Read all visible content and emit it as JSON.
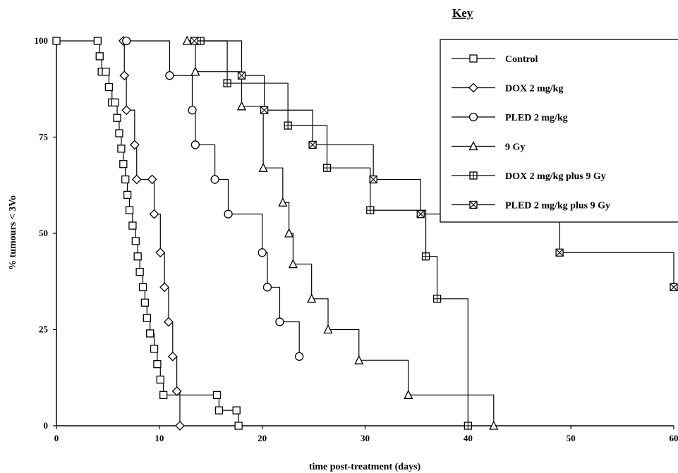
{
  "chart_data": {
    "type": "line",
    "step": true,
    "title": "",
    "key_title": "Key",
    "xlabel": "time post-treatment (days)",
    "ylabel": "% tumours < 3Vo",
    "xlim": [
      0,
      60
    ],
    "ylim": [
      0,
      100
    ],
    "x_ticks": [
      "0",
      "10",
      "20",
      "30",
      "40",
      "50",
      "60"
    ],
    "y_ticks": [
      "0",
      "25",
      "50",
      "75",
      "100"
    ],
    "grid": false,
    "legend_position": "top-right",
    "series": [
      {
        "name": "Control",
        "marker": "square",
        "x": [
          0,
          4,
          4.2,
          4.4,
          4.8,
          5.1,
          5.4,
          5.7,
          5.9,
          6.1,
          6.3,
          6.5,
          6.7,
          6.9,
          7.1,
          7.4,
          7.7,
          7.9,
          8.1,
          8.4,
          8.6,
          8.8,
          9.1,
          9.5,
          9.8,
          10.1,
          10.4,
          15.6,
          15.8,
          17.5,
          17.7
        ],
        "y": [
          100,
          100,
          96,
          92,
          92,
          88,
          84,
          84,
          80,
          76,
          72,
          68,
          64,
          60,
          56,
          52,
          48,
          44,
          40,
          36,
          32,
          28,
          24,
          20,
          16,
          12,
          8,
          8,
          4,
          4,
          0
        ]
      },
      {
        "name": "DOX 2 mg/kg",
        "marker": "diamond",
        "x": [
          6.5,
          6.6,
          6.8,
          7.6,
          7.8,
          9.3,
          9.5,
          10.1,
          10.5,
          10.9,
          11.3,
          11.7,
          12.0
        ],
        "y": [
          100,
          91,
          82,
          73,
          64,
          64,
          55,
          45,
          36,
          27,
          18,
          9,
          0
        ]
      },
      {
        "name": "PLED 2 mg/kg",
        "marker": "circle",
        "x": [
          6.8,
          11.0,
          13.2,
          13.5,
          15.4,
          16.7,
          20.0,
          20.5,
          21.7,
          23.6
        ],
        "y": [
          100,
          91,
          82,
          73,
          64,
          55,
          45,
          36,
          27,
          18
        ]
      },
      {
        "name": "9 Gy",
        "marker": "triangle",
        "x": [
          12.7,
          13.5,
          18.0,
          20.1,
          22.0,
          22.6,
          23.0,
          24.8,
          26.4,
          29.4,
          34.2,
          42.5
        ],
        "y": [
          100,
          92,
          83,
          67,
          58,
          50,
          42,
          33,
          25,
          17,
          8,
          0
        ]
      },
      {
        "name": "DOX 2 mg/kg plus 9 Gy",
        "marker": "square-plus",
        "x": [
          14.0,
          16.6,
          22.5,
          26.3,
          30.5,
          35.9,
          37.0,
          40.0
        ],
        "y": [
          100,
          89,
          78,
          67,
          56,
          44,
          33,
          0
        ]
      },
      {
        "name": "PLED 2 mg/kg plus 9 Gy",
        "marker": "square-x",
        "x": [
          13.4,
          18.0,
          20.2,
          24.9,
          30.8,
          35.4,
          48.9,
          60.0
        ],
        "y": [
          100,
          91,
          82,
          73,
          64,
          55,
          45,
          36
        ]
      }
    ]
  }
}
